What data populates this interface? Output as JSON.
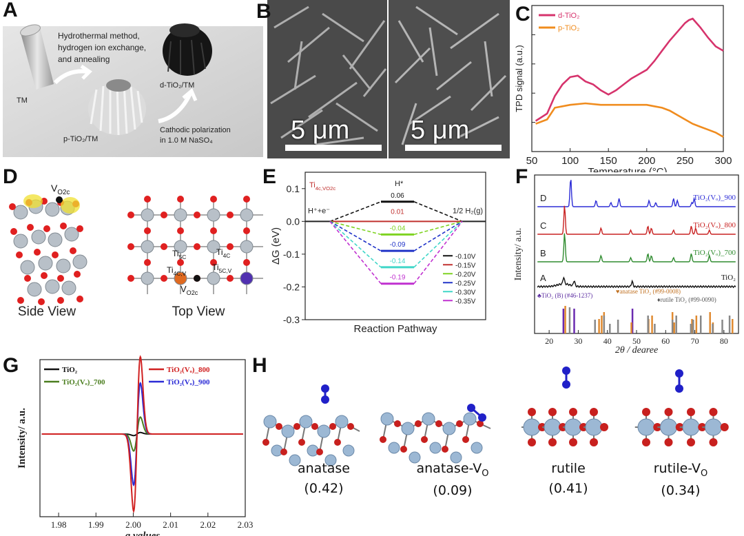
{
  "labels": {
    "a": "A",
    "b": "B",
    "c": "C",
    "d": "D",
    "e": "E",
    "f": "F",
    "g": "G",
    "h": "H"
  },
  "panelA": {
    "tm": "TM",
    "step1": "Hydrothermal method,",
    "step2": "hydrogen ion exchange,",
    "step3": "and annealing",
    "ptio2": "p-TiO₂/TM",
    "dtio2": "d-TiO₂/TM",
    "cath1": "Cathodic polarization",
    "cath2": "in 1.0 M NaSO₄"
  },
  "panelB": {
    "scale_left": "5 μm",
    "scale_right": "5 μm"
  },
  "panelC": {
    "ylabel": "TPD signal (a.u.)",
    "xlabel": "Temperature (°C)",
    "legend": [
      "d-TiO₂",
      "p-TiO₂"
    ],
    "colors": {
      "d": "#d6336c",
      "p": "#f08c1e"
    }
  },
  "panelD": {
    "side": "Side View",
    "top": "Top View",
    "v": "V",
    "vsub": "O2c",
    "ti5c": "Ti",
    "ti5c_sub": "5C",
    "ti4c": "Ti",
    "ti4c_sub": "4C",
    "ti4cv": "Ti",
    "ti4cv_sub": "4C,V",
    "ti5cv": "Ti",
    "ti5cv_sub": "5C,V",
    "vo2c": "V",
    "vo2c_sub": "O2c"
  },
  "panelE": {
    "ylabel": "ΔG (eV)",
    "xlabel": "Reaction Pathway",
    "tag": "Ti",
    "tag_sub": "4c,VO2c",
    "h_label": "H",
    "hplus": "H⁺+e⁻",
    "halfh2": "1/2 H₂(g)"
  },
  "panelF": {
    "ylabel": "Intensity/ a.u.",
    "xlabel": "2θ / degree",
    "curves": [
      {
        "tag": "D",
        "name": "TiO₂(Vₒ)_900",
        "color": "#2b2bd6"
      },
      {
        "tag": "C",
        "name": "TiO₂(Vₒ)_800",
        "color": "#c82020"
      },
      {
        "tag": "B",
        "name": "TiO₂(Vₒ)_700",
        "color": "#2e8b2e"
      },
      {
        "tag": "A",
        "name": "TiO₂",
        "color": "#111111"
      }
    ],
    "ref_b": "♣TiO₂ (B) (#46-1237)",
    "ref_anatase": "♥anatase TiO₂ (#99-0008)",
    "ref_rutile": "♦rutile TiO₂ (#99-0090)"
  },
  "panelG": {
    "ylabel": "Intensity/ a.u.",
    "xlabel": "g values",
    "legend": [
      {
        "name": "TiO₂",
        "color": "#111111"
      },
      {
        "name": "TiO₂(Vₒ)_700",
        "color": "#4a7d1e"
      },
      {
        "name": "TiO₂(Vₒ)_800",
        "color": "#d02020"
      },
      {
        "name": "TiO₂(Vₒ)_900",
        "color": "#2a2ad6"
      }
    ]
  },
  "panelH": {
    "items": [
      {
        "name": "anatase",
        "value": "(0.42)"
      },
      {
        "name": "anatase-V",
        "sub": "O",
        "value": "(0.09)"
      },
      {
        "name": "rutile",
        "value": "(0.41)"
      },
      {
        "name": "rutile-V",
        "sub": "O",
        "value": "(0.34)"
      }
    ]
  },
  "chart_data": [
    {
      "id": "C",
      "type": "line",
      "title": "",
      "xlabel": "Temperature (°C)",
      "ylabel": "TPD signal (a.u.)",
      "xlim": [
        50,
        300
      ],
      "ylim": [
        0,
        10
      ],
      "x_ticks": [
        50,
        100,
        150,
        200,
        250,
        300
      ],
      "series": [
        {
          "name": "d-TiO₂",
          "x": [
            55,
            70,
            80,
            90,
            100,
            110,
            120,
            130,
            140,
            150,
            160,
            170,
            180,
            190,
            200,
            210,
            220,
            230,
            240,
            250,
            255,
            260,
            270,
            280,
            290,
            300
          ],
          "y": [
            2.1,
            2.6,
            3.8,
            4.6,
            5.1,
            5.2,
            4.8,
            4.6,
            4.2,
            3.9,
            4.2,
            4.6,
            5.0,
            5.3,
            5.6,
            6.2,
            6.9,
            7.6,
            8.2,
            8.8,
            9.0,
            9.1,
            8.5,
            7.8,
            7.2,
            6.9
          ]
        },
        {
          "name": "p-TiO₂",
          "x": [
            55,
            70,
            80,
            90,
            100,
            120,
            140,
            160,
            180,
            200,
            210,
            220,
            230,
            240,
            250,
            260,
            270,
            280,
            290,
            300
          ],
          "y": [
            1.9,
            2.2,
            3.0,
            3.1,
            3.2,
            3.3,
            3.2,
            3.2,
            3.2,
            3.2,
            3.1,
            3.0,
            2.8,
            2.5,
            2.2,
            1.9,
            1.7,
            1.5,
            1.3,
            1.0
          ]
        }
      ]
    },
    {
      "id": "E",
      "type": "line",
      "xlabel": "Reaction Pathway",
      "ylabel": "ΔG (eV)",
      "ylim": [
        -0.3,
        0.15
      ],
      "y_ticks": [
        -0.3,
        -0.2,
        -0.1,
        0.0,
        0.1
      ],
      "categories": [
        "H⁺+e⁻",
        "H*",
        "1/2 H₂(g)"
      ],
      "series": [
        {
          "name": "-0.10V",
          "values": [
            0,
            0.06,
            0
          ]
        },
        {
          "name": "-0.15V",
          "values": [
            0,
            0.01,
            0
          ]
        },
        {
          "name": "-0.20V",
          "values": [
            0,
            -0.04,
            0
          ]
        },
        {
          "name": "-0.25V",
          "values": [
            0,
            -0.09,
            0
          ]
        },
        {
          "name": "-0.30V",
          "values": [
            0,
            -0.14,
            0
          ]
        },
        {
          "name": "-0.35V",
          "values": [
            0,
            -0.19,
            0
          ]
        }
      ],
      "level_labels": [
        "0.06",
        "0.01",
        "-0.04",
        "-0.09",
        "-0.14",
        "-0.19"
      ],
      "colors": [
        "#111111",
        "#c0302e",
        "#7ed321",
        "#2033c8",
        "#3fd6c8",
        "#c030d0"
      ]
    },
    {
      "id": "F",
      "type": "line",
      "xlabel": "2θ / degree",
      "ylabel": "Intensity/ a.u.",
      "xlim": [
        15,
        85
      ],
      "x_ticks": [
        20,
        30,
        40,
        50,
        60,
        70,
        80
      ],
      "series": [
        {
          "name": "TiO₂(Vₒ)_900",
          "peaks": [
            27.4,
            36.1,
            41.2,
            44.0,
            54.3,
            56.6,
            62.7,
            64.0,
            69.0,
            69.8
          ]
        },
        {
          "name": "TiO₂(Vₒ)_800",
          "peaks": [
            25.3,
            37.8,
            48.0,
            53.9,
            55.1,
            62.7,
            68.8,
            70.3,
            75.0
          ]
        },
        {
          "name": "TiO₂(Vₒ)_700",
          "peaks": [
            25.3,
            37.8,
            48.0,
            53.9,
            55.1,
            62.7,
            68.8,
            75.0
          ]
        },
        {
          "name": "TiO₂",
          "peaks": [
            25.0,
            28.6,
            48.5
          ]
        }
      ],
      "references": {
        "TiO₂(B)": [
          24.9,
          28.6,
          48.6
        ],
        "anatase": [
          25.3,
          36.9,
          37.8,
          38.6,
          48.0,
          53.9,
          55.1,
          62.1,
          62.7,
          68.8,
          70.3,
          75.0,
          76.0,
          82.7
        ],
        "rutile": [
          27.4,
          36.1,
          39.2,
          41.2,
          44.0,
          54.3,
          56.6,
          62.7,
          64.0,
          69.0,
          69.8,
          72.4,
          76.5,
          79.8,
          82.3
        ]
      }
    },
    {
      "id": "G",
      "type": "line",
      "xlabel": "g values",
      "ylabel": "Intensity/ a.u.",
      "xlim": [
        1.975,
        2.03
      ],
      "x_ticks": [
        1.98,
        1.99,
        2.0,
        2.01,
        2.02,
        2.03
      ],
      "series": [
        {
          "name": "TiO₂",
          "amplitude": 0.02
        },
        {
          "name": "TiO₂(Vₒ)_700",
          "amplitude": 0.22
        },
        {
          "name": "TiO₂(Vₒ)_800",
          "amplitude": 1.0
        },
        {
          "name": "TiO₂(Vₒ)_900",
          "amplitude": 0.66
        }
      ],
      "center_g": 2.001
    }
  ]
}
